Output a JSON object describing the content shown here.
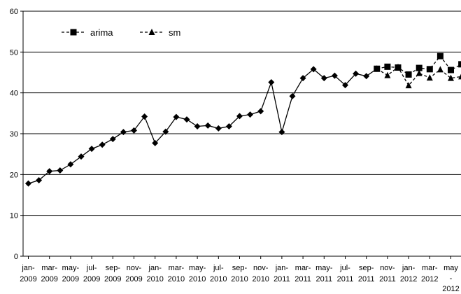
{
  "chart_data": {
    "type": "line",
    "title": "",
    "xlabel": "",
    "ylabel": "",
    "ylim": [
      0,
      60
    ],
    "y_ticks": [
      0,
      10,
      20,
      30,
      40,
      50,
      60
    ],
    "grid": "horizontal",
    "legend_position": "top-left",
    "x_tick_labels": [
      {
        "index": 0,
        "top": "jan-",
        "bottom": "2009"
      },
      {
        "index": 2,
        "top": "mar-",
        "bottom": "2009"
      },
      {
        "index": 4,
        "top": "may-",
        "bottom": "2009"
      },
      {
        "index": 6,
        "top": "jul-",
        "bottom": "2009"
      },
      {
        "index": 8,
        "top": "sep-",
        "bottom": "2009"
      },
      {
        "index": 10,
        "top": "nov-",
        "bottom": "2009"
      },
      {
        "index": 12,
        "top": "jan-",
        "bottom": "2010"
      },
      {
        "index": 14,
        "top": "mar-",
        "bottom": "2010"
      },
      {
        "index": 16,
        "top": "may-",
        "bottom": "2010"
      },
      {
        "index": 18,
        "top": "jul-",
        "bottom": "2010"
      },
      {
        "index": 20,
        "top": "sep-",
        "bottom": "2010"
      },
      {
        "index": 22,
        "top": "nov-",
        "bottom": "2010"
      },
      {
        "index": 24,
        "top": "jan-",
        "bottom": "2011"
      },
      {
        "index": 26,
        "top": "mar-",
        "bottom": "2011"
      },
      {
        "index": 28,
        "top": "may-",
        "bottom": "2011"
      },
      {
        "index": 30,
        "top": "jul-",
        "bottom": "2011"
      },
      {
        "index": 32,
        "top": "sep-",
        "bottom": "2011"
      },
      {
        "index": 34,
        "top": "nov-",
        "bottom": "2011"
      },
      {
        "index": 36,
        "top": "jan-",
        "bottom": "2012"
      },
      {
        "index": 38,
        "top": "mar-",
        "bottom": "2012"
      },
      {
        "index": 40,
        "top": "may",
        "middle": "-",
        "bottom": "2012"
      }
    ],
    "series": [
      {
        "name": "",
        "marker": "diamond",
        "line": "solid",
        "x_index": [
          0,
          1,
          2,
          3,
          4,
          5,
          6,
          7,
          8,
          9,
          10,
          11,
          12,
          13,
          14,
          15,
          16,
          17,
          18,
          19,
          20,
          21,
          22,
          23,
          24,
          25,
          26,
          27,
          28,
          29,
          30,
          31,
          32,
          33
        ],
        "values": [
          17.8,
          18.6,
          20.8,
          21.0,
          22.5,
          24.4,
          26.3,
          27.3,
          28.7,
          30.4,
          30.8,
          34.2,
          27.7,
          30.5,
          34.1,
          33.5,
          31.8,
          32.0,
          31.3,
          31.8,
          34.3,
          34.7,
          35.5,
          42.6,
          30.4,
          39.2,
          43.6,
          45.8,
          43.6,
          44.2,
          41.9,
          44.7,
          44.1,
          45.9
        ]
      },
      {
        "name": "arima",
        "marker": "square",
        "line": "dashed",
        "x_index": [
          33,
          34,
          35,
          36,
          37,
          38,
          39,
          40,
          41
        ],
        "values": [
          45.9,
          46.4,
          46.2,
          44.5,
          46.1,
          45.8,
          49.0,
          45.6,
          47.0
        ]
      },
      {
        "name": "sm",
        "marker": "triangle",
        "line": "dashed",
        "x_index": [
          33,
          34,
          35,
          36,
          37,
          38,
          39,
          40,
          41
        ],
        "values": [
          45.9,
          44.3,
          46.3,
          41.8,
          44.8,
          43.7,
          45.7,
          43.6,
          44.0
        ]
      }
    ]
  },
  "colors": {
    "series": "#000000",
    "grid": "#000000",
    "background": "#ffffff"
  }
}
